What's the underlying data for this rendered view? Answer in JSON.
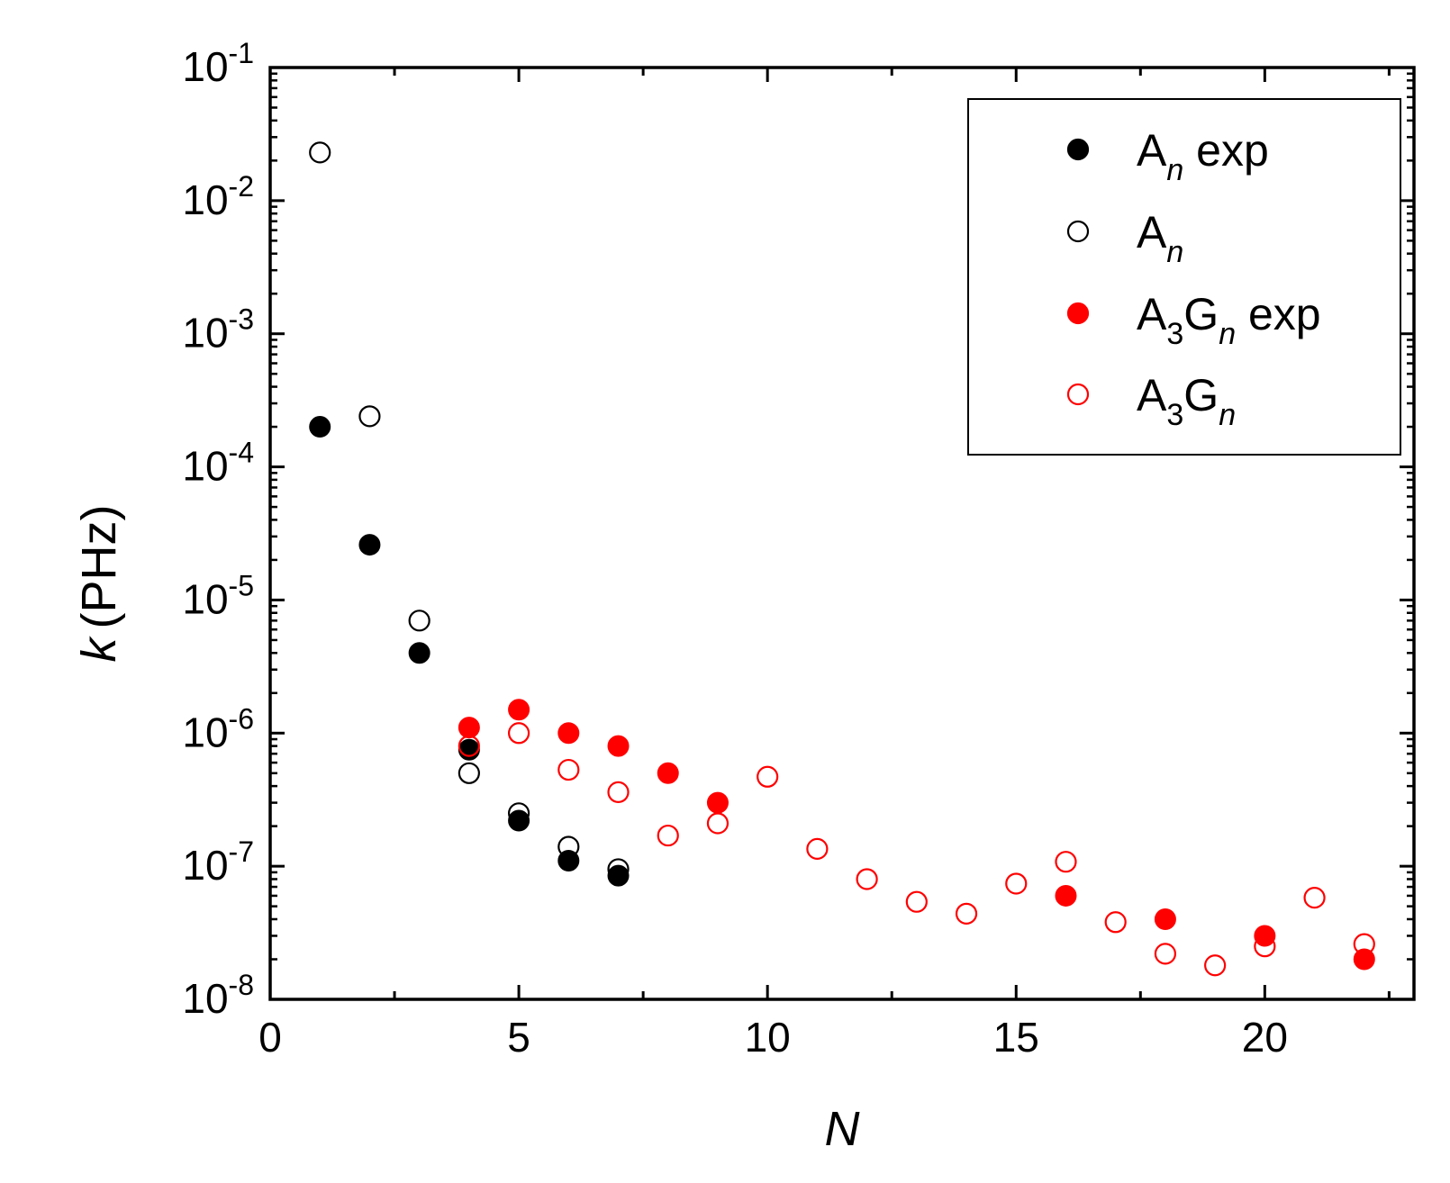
{
  "chart_data": {
    "type": "scatter",
    "title": "",
    "xlabel": "N",
    "ylabel": "k (PHz)",
    "ylabel_italic": "k",
    "ylabel_unit": "(PHz)",
    "x_scale": "linear",
    "y_scale": "log",
    "xlim": [
      0,
      23
    ],
    "ylim": [
      1e-08,
      0.1
    ],
    "x_ticks": [
      0,
      5,
      10,
      15,
      20
    ],
    "y_ticks": [
      {
        "value": 0.1,
        "base": "10",
        "exp": "-1"
      },
      {
        "value": 0.01,
        "base": "10",
        "exp": "-2"
      },
      {
        "value": 0.001,
        "base": "10",
        "exp": "-3"
      },
      {
        "value": 0.0001,
        "base": "10",
        "exp": "-4"
      },
      {
        "value": 1e-05,
        "base": "10",
        "exp": "-5"
      },
      {
        "value": 1e-06,
        "base": "10",
        "exp": "-6"
      },
      {
        "value": 1e-07,
        "base": "10",
        "exp": "-7"
      },
      {
        "value": 1e-08,
        "base": "10",
        "exp": "-8"
      }
    ],
    "legend_position": "top-right",
    "grid": false,
    "series": [
      {
        "name": "An exp",
        "legend_main": "A",
        "legend_sub": "n",
        "legend_sub2": "",
        "legend_suffix": " exp",
        "marker": "filled",
        "color": "#000000",
        "points": [
          {
            "x": 1,
            "y": 0.0002
          },
          {
            "x": 2,
            "y": 2.6e-05
          },
          {
            "x": 3,
            "y": 4e-06
          },
          {
            "x": 4,
            "y": 7.5e-07
          },
          {
            "x": 5,
            "y": 2.2e-07
          },
          {
            "x": 6,
            "y": 1.1e-07
          },
          {
            "x": 7,
            "y": 8.5e-08
          }
        ]
      },
      {
        "name": "An",
        "legend_main": "A",
        "legend_sub": "n",
        "legend_sub2": "",
        "legend_suffix": "",
        "marker": "open",
        "color": "#000000",
        "points": [
          {
            "x": 1,
            "y": 0.023
          },
          {
            "x": 2,
            "y": 0.00024
          },
          {
            "x": 3,
            "y": 7e-06
          },
          {
            "x": 4,
            "y": 5e-07
          },
          {
            "x": 5,
            "y": 2.5e-07
          },
          {
            "x": 6,
            "y": 1.4e-07
          },
          {
            "x": 7,
            "y": 9.5e-08
          }
        ]
      },
      {
        "name": "A3Gn exp",
        "legend_main": "A",
        "legend_sub": "3",
        "legend_main2": "G",
        "legend_sub2": "n",
        "legend_suffix": " exp",
        "marker": "filled",
        "color": "#ff0000",
        "points": [
          {
            "x": 4,
            "y": 1.1e-06
          },
          {
            "x": 5,
            "y": 1.5e-06
          },
          {
            "x": 6,
            "y": 1e-06
          },
          {
            "x": 7,
            "y": 8e-07
          },
          {
            "x": 8,
            "y": 5e-07
          },
          {
            "x": 9,
            "y": 3e-07
          },
          {
            "x": 16,
            "y": 6e-08
          },
          {
            "x": 18,
            "y": 4e-08
          },
          {
            "x": 20,
            "y": 3e-08
          },
          {
            "x": 22,
            "y": 2e-08
          }
        ]
      },
      {
        "name": "A3Gn",
        "legend_main": "A",
        "legend_sub": "3",
        "legend_main2": "G",
        "legend_sub2": "n",
        "legend_suffix": "",
        "marker": "open",
        "color": "#ff0000",
        "points": [
          {
            "x": 4,
            "y": 8e-07
          },
          {
            "x": 5,
            "y": 1e-06
          },
          {
            "x": 6,
            "y": 5.3e-07
          },
          {
            "x": 7,
            "y": 3.6e-07
          },
          {
            "x": 8,
            "y": 1.7e-07
          },
          {
            "x": 9,
            "y": 2.1e-07
          },
          {
            "x": 10,
            "y": 4.7e-07
          },
          {
            "x": 11,
            "y": 1.35e-07
          },
          {
            "x": 12,
            "y": 8e-08
          },
          {
            "x": 13,
            "y": 5.4e-08
          },
          {
            "x": 14,
            "y": 4.4e-08
          },
          {
            "x": 15,
            "y": 7.4e-08
          },
          {
            "x": 16,
            "y": 1.08e-07
          },
          {
            "x": 17,
            "y": 3.8e-08
          },
          {
            "x": 18,
            "y": 2.2e-08
          },
          {
            "x": 19,
            "y": 1.8e-08
          },
          {
            "x": 20,
            "y": 2.5e-08
          },
          {
            "x": 21,
            "y": 5.8e-08
          },
          {
            "x": 22,
            "y": 2.6e-08
          }
        ]
      }
    ]
  }
}
